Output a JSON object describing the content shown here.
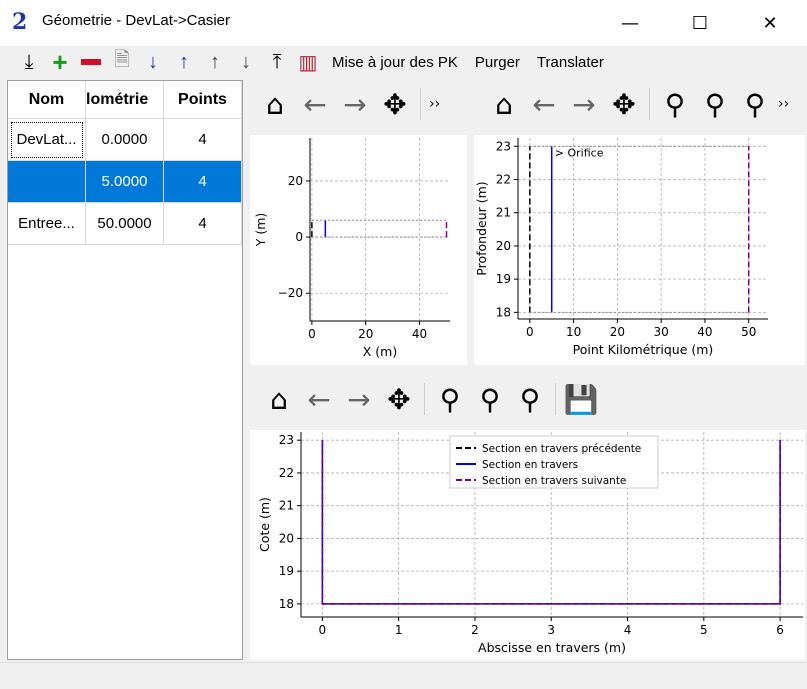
{
  "window": {
    "title": "Géometrie - DevLat->Casier",
    "logo": "2",
    "minimize": "—",
    "maximize": "☐",
    "close": "✕"
  },
  "toolbar": {
    "icons": [
      "import-icon",
      "add-icon",
      "remove-icon",
      "notes-icon",
      "sort-descending-icon",
      "sort-ascending-icon",
      "move-up-icon",
      "move-down-icon",
      "export-icon",
      "barcode-icon"
    ],
    "buttons": [
      "Mise à jour des PK",
      "Purger",
      "Translater"
    ]
  },
  "table": {
    "headers": [
      "Nom",
      "lométrie",
      "Points"
    ],
    "rows": [
      [
        "DevLat...",
        "0.0000",
        "4"
      ],
      [
        "",
        "5.0000",
        "4"
      ],
      [
        "Entree...",
        "50.0000",
        "4"
      ]
    ],
    "selected_row": 1
  },
  "nav_toolbar": {
    "more": "››"
  },
  "colors": {
    "accent": "#0078d7",
    "prev": "#000000",
    "current": "#0000ff",
    "next": "#800080"
  },
  "chart_data": [
    {
      "type": "line",
      "xlabel": "X (m)",
      "ylabel": "Y (m)",
      "xlim": [
        -0.7,
        51.3
      ],
      "ylim": [
        -29.9,
        35.3
      ],
      "xticks": [
        0,
        20,
        40
      ],
      "yticks": [
        -20,
        0,
        20
      ],
      "grid": true,
      "series": [
        {
          "style": "dashed",
          "color": "#000000",
          "x": [
            0,
            0
          ],
          "y": [
            0,
            6
          ]
        },
        {
          "style": "solid",
          "color": "#0000ff",
          "x": [
            5,
            5
          ],
          "y": [
            0,
            6
          ]
        },
        {
          "style": "dashed",
          "color": "#800080",
          "x": [
            50,
            50
          ],
          "y": [
            0,
            6
          ]
        },
        {
          "style": "dotted",
          "color": "#888888",
          "x": [
            0,
            50
          ],
          "y": [
            0,
            0
          ]
        },
        {
          "style": "dotted",
          "color": "#888888",
          "x": [
            0,
            50
          ],
          "y": [
            6,
            6
          ]
        }
      ]
    },
    {
      "type": "line",
      "xlabel": "Point Kilométrique (m)",
      "ylabel": "Profondeur (m)",
      "xlim": [
        -2.7,
        54.4
      ],
      "ylim": [
        17.8,
        23.25
      ],
      "xticks": [
        0,
        10,
        20,
        30,
        40,
        50
      ],
      "yticks": [
        18,
        19,
        20,
        21,
        22,
        23
      ],
      "grid": true,
      "annotation": "> Orifice",
      "annotation_at": [
        5.7,
        23
      ],
      "series": [
        {
          "style": "dashed",
          "color": "#000000",
          "x": [
            0,
            0
          ],
          "y": [
            18,
            23
          ]
        },
        {
          "style": "solid",
          "color": "#0000ff",
          "x": [
            5,
            5
          ],
          "y": [
            18,
            23
          ]
        },
        {
          "style": "dashed",
          "color": "#800080",
          "x": [
            50,
            50
          ],
          "y": [
            18,
            23
          ]
        },
        {
          "style": "dotted",
          "color": "#888888",
          "x": [
            0,
            50
          ],
          "y": [
            23,
            23
          ]
        },
        {
          "style": "dotted",
          "color": "#888888",
          "x": [
            0,
            50
          ],
          "y": [
            18,
            18
          ]
        }
      ]
    },
    {
      "type": "line",
      "xlabel": "Abscisse en travers (m)",
      "ylabel": "Cote (m)",
      "xlim": [
        -0.28,
        6.3
      ],
      "ylim": [
        17.6,
        23.25
      ],
      "xticks": [
        0,
        1,
        2,
        3,
        4,
        5,
        6
      ],
      "yticks": [
        18,
        19,
        20,
        21,
        22,
        23
      ],
      "grid": true,
      "legend": "top-center",
      "series": [
        {
          "name": "Section en travers précédente",
          "style": "dashed",
          "color": "#000000",
          "x": [
            0,
            0,
            6,
            6
          ],
          "y": [
            23,
            18,
            18,
            23
          ]
        },
        {
          "name": "Section en travers",
          "style": "solid",
          "color": "#0000ff",
          "x": [
            0,
            0,
            6,
            6
          ],
          "y": [
            23,
            18,
            18,
            23
          ]
        },
        {
          "name": "Section en travers suivante",
          "style": "dashed",
          "color": "#800080",
          "x": [
            0,
            0,
            6,
            6
          ],
          "y": [
            23,
            18,
            18,
            23
          ]
        }
      ]
    }
  ]
}
